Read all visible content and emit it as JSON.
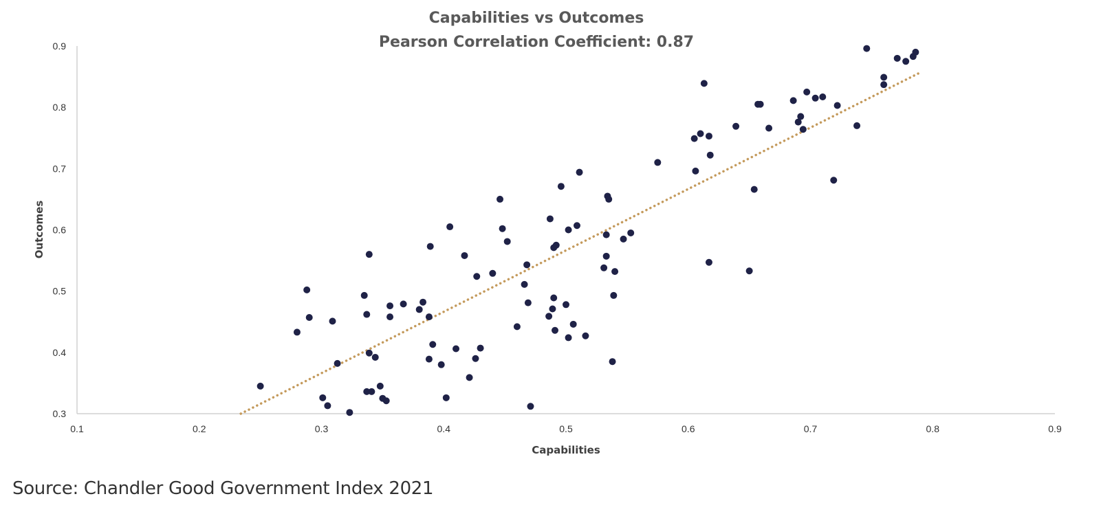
{
  "chart_data": {
    "type": "scatter",
    "title": "Capabilities vs Outcomes",
    "subtitle": "Pearson Correlation Coefficient: 0.87",
    "xlabel": "Capabilities",
    "ylabel": "Outcomes",
    "xlim": [
      0.1,
      0.9
    ],
    "ylim": [
      0.3,
      0.9
    ],
    "xticks": [
      "0.1",
      "0.2",
      "0.3",
      "0.4",
      "0.5",
      "0.6",
      "0.7",
      "0.8",
      "0.9"
    ],
    "yticks": [
      "0.9",
      "0.8",
      "0.7",
      "0.6",
      "0.5",
      "0.4",
      "0.3"
    ],
    "grid": false,
    "point_color": "#1f2247",
    "trendline": {
      "style": "dotted",
      "color": "#c49a5c",
      "start": [
        0.234,
        0.3
      ],
      "end": [
        0.79,
        0.857
      ]
    },
    "points": [
      [
        0.25,
        0.345
      ],
      [
        0.28,
        0.433
      ],
      [
        0.288,
        0.502
      ],
      [
        0.29,
        0.457
      ],
      [
        0.301,
        0.326
      ],
      [
        0.305,
        0.313
      ],
      [
        0.309,
        0.451
      ],
      [
        0.313,
        0.382
      ],
      [
        0.323,
        0.302
      ],
      [
        0.335,
        0.493
      ],
      [
        0.337,
        0.462
      ],
      [
        0.337,
        0.336
      ],
      [
        0.339,
        0.399
      ],
      [
        0.339,
        0.56
      ],
      [
        0.341,
        0.336
      ],
      [
        0.344,
        0.392
      ],
      [
        0.348,
        0.345
      ],
      [
        0.35,
        0.325
      ],
      [
        0.353,
        0.321
      ],
      [
        0.356,
        0.476
      ],
      [
        0.356,
        0.458
      ],
      [
        0.367,
        0.479
      ],
      [
        0.38,
        0.47
      ],
      [
        0.383,
        0.482
      ],
      [
        0.388,
        0.389
      ],
      [
        0.388,
        0.458
      ],
      [
        0.389,
        0.573
      ],
      [
        0.391,
        0.413
      ],
      [
        0.398,
        0.38
      ],
      [
        0.402,
        0.326
      ],
      [
        0.405,
        0.605
      ],
      [
        0.41,
        0.406
      ],
      [
        0.417,
        0.558
      ],
      [
        0.421,
        0.359
      ],
      [
        0.426,
        0.39
      ],
      [
        0.427,
        0.524
      ],
      [
        0.43,
        0.407
      ],
      [
        0.44,
        0.529
      ],
      [
        0.446,
        0.65
      ],
      [
        0.448,
        0.602
      ],
      [
        0.452,
        0.581
      ],
      [
        0.46,
        0.442
      ],
      [
        0.466,
        0.511
      ],
      [
        0.468,
        0.543
      ],
      [
        0.469,
        0.481
      ],
      [
        0.471,
        0.312
      ],
      [
        0.486,
        0.459
      ],
      [
        0.487,
        0.618
      ],
      [
        0.489,
        0.471
      ],
      [
        0.49,
        0.571
      ],
      [
        0.49,
        0.489
      ],
      [
        0.491,
        0.436
      ],
      [
        0.492,
        0.575
      ],
      [
        0.496,
        0.671
      ],
      [
        0.5,
        0.478
      ],
      [
        0.502,
        0.6
      ],
      [
        0.502,
        0.424
      ],
      [
        0.506,
        0.446
      ],
      [
        0.509,
        0.607
      ],
      [
        0.511,
        0.694
      ],
      [
        0.516,
        0.427
      ],
      [
        0.531,
        0.538
      ],
      [
        0.533,
        0.557
      ],
      [
        0.533,
        0.592
      ],
      [
        0.534,
        0.655
      ],
      [
        0.535,
        0.65
      ],
      [
        0.538,
        0.385
      ],
      [
        0.539,
        0.493
      ],
      [
        0.54,
        0.532
      ],
      [
        0.547,
        0.585
      ],
      [
        0.553,
        0.595
      ],
      [
        0.575,
        0.71
      ],
      [
        0.605,
        0.749
      ],
      [
        0.606,
        0.696
      ],
      [
        0.61,
        0.757
      ],
      [
        0.613,
        0.839
      ],
      [
        0.617,
        0.547
      ],
      [
        0.617,
        0.753
      ],
      [
        0.618,
        0.722
      ],
      [
        0.639,
        0.769
      ],
      [
        0.65,
        0.533
      ],
      [
        0.654,
        0.666
      ],
      [
        0.657,
        0.805
      ],
      [
        0.659,
        0.805
      ],
      [
        0.666,
        0.766
      ],
      [
        0.686,
        0.811
      ],
      [
        0.69,
        0.776
      ],
      [
        0.692,
        0.785
      ],
      [
        0.694,
        0.764
      ],
      [
        0.697,
        0.825
      ],
      [
        0.704,
        0.815
      ],
      [
        0.71,
        0.817
      ],
      [
        0.719,
        0.681
      ],
      [
        0.722,
        0.803
      ],
      [
        0.738,
        0.77
      ],
      [
        0.746,
        0.896
      ],
      [
        0.76,
        0.849
      ],
      [
        0.76,
        0.837
      ],
      [
        0.771,
        0.88
      ],
      [
        0.778,
        0.875
      ],
      [
        0.784,
        0.883
      ],
      [
        0.786,
        0.89
      ]
    ]
  },
  "source": "Source: Chandler Good Government Index 2021"
}
